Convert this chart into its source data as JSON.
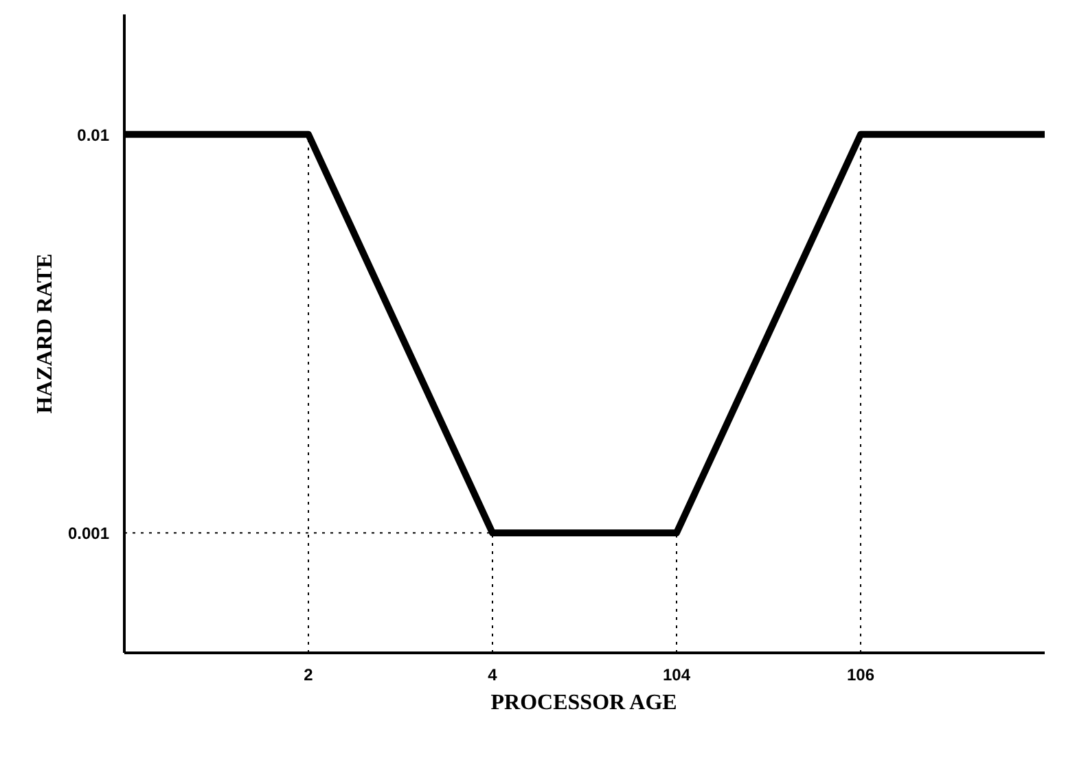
{
  "chart_data": {
    "type": "line",
    "xlabel": "PROCESSOR AGE",
    "ylabel": "HAZARD RATE",
    "categories": [
      null,
      "2",
      "4",
      "104",
      "106",
      null
    ],
    "series": [
      {
        "color": "#000000",
        "values": [
          0.01,
          0.01,
          0.001,
          0.001,
          0.01,
          0.01
        ]
      }
    ],
    "ylim": [
      0.0005,
      0.02
    ],
    "log": "y",
    "yticks": [
      0.001,
      0.01
    ],
    "ref_lines": [
      {
        "axis": "x",
        "value": "2",
        "line_style": "dotted"
      },
      {
        "axis": "x",
        "value": "4",
        "line_style": "dotted"
      },
      {
        "axis": "x",
        "value": "104",
        "line_style": "dotted"
      },
      {
        "axis": "x",
        "value": "106",
        "line_style": "dotted"
      },
      {
        "axis": "y",
        "value": 0.001,
        "line_style": "dotted"
      }
    ],
    "grid": false,
    "marker": "none",
    "line_style": "solid"
  }
}
